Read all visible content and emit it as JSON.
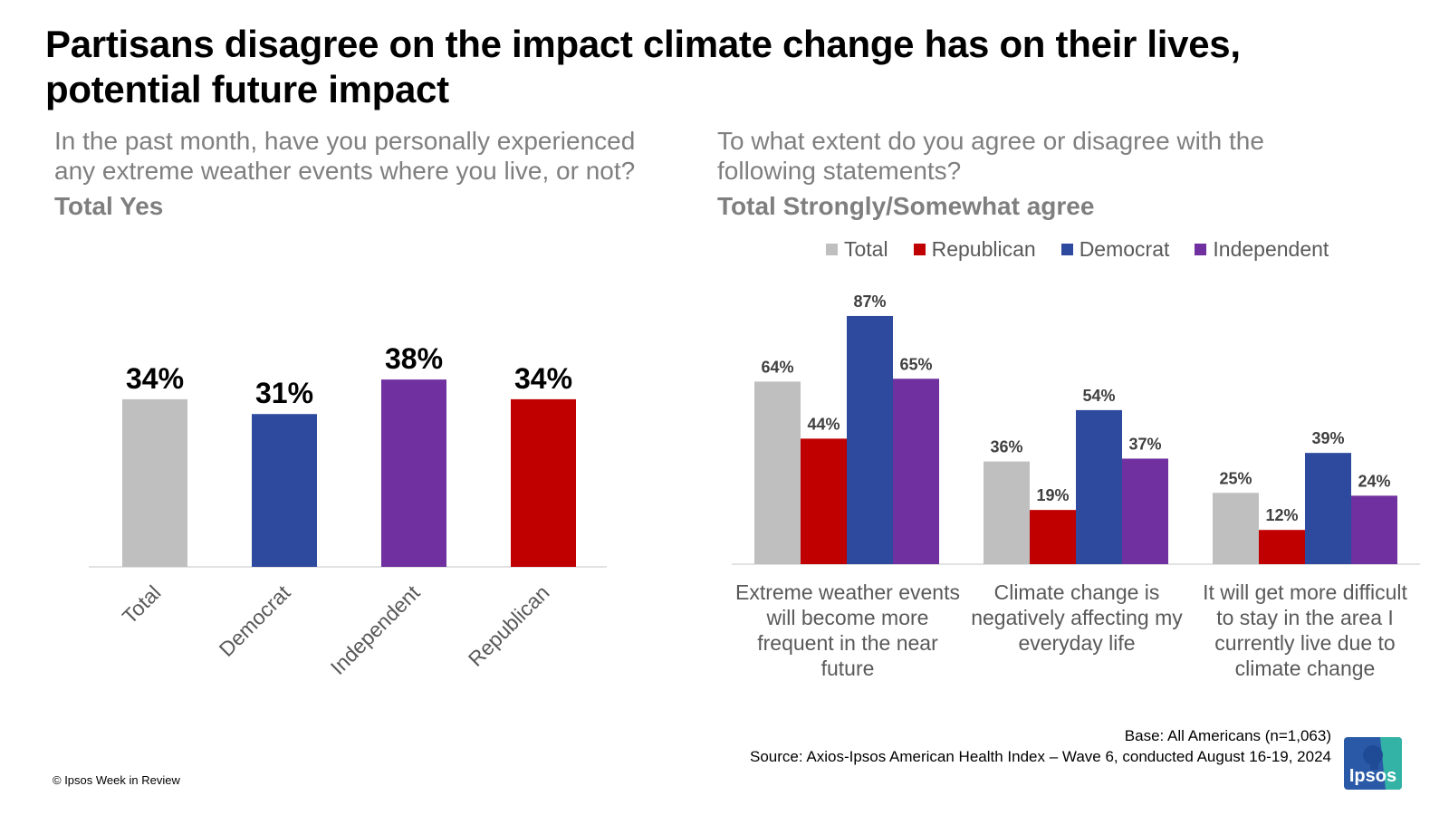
{
  "title": "Partisans disagree on the impact climate change has on their lives, potential future impact",
  "left": {
    "question": "In the past month, have you personally experienced any extreme weather events where you live, or not?",
    "subtitle": "Total Yes"
  },
  "right": {
    "question": "To what extent do you agree or disagree with the following statements?",
    "subtitle": "Total Strongly/Somewhat agree"
  },
  "footer": {
    "base": "Base: All Americans (n=1,063)",
    "source": "Source: Axios-Ipsos American Health Index – Wave 6, conducted August 16-19, 2024",
    "copyright": "© Ipsos Week in Review",
    "logo_text": "Ipsos"
  },
  "chart_data": [
    {
      "type": "bar",
      "categories": [
        "Total",
        "Democrat",
        "Independent",
        "Republican"
      ],
      "values": [
        34,
        31,
        38,
        34
      ],
      "value_labels": [
        "34%",
        "31%",
        "38%",
        "34%"
      ],
      "colors": [
        "#bfbfbf",
        "#2e4a9e",
        "#7030a0",
        "#c00000"
      ],
      "xlabel": "",
      "ylabel": "",
      "ylim": [
        0,
        45
      ]
    },
    {
      "type": "bar",
      "categories": [
        "Extreme weather events will become more frequent in the near future",
        "Climate change is negatively affecting my everyday life",
        "It will get more difficult to stay in the area I currently live due to climate change"
      ],
      "category_lines": [
        [
          "Extreme weather events",
          "will become more",
          "frequent in the near",
          "future"
        ],
        [
          "Climate change is",
          "negatively affecting my",
          "everyday life"
        ],
        [
          "It will get more difficult",
          "to stay in the area I",
          "currently live due to",
          "climate change"
        ]
      ],
      "series": [
        {
          "name": "Total",
          "color": "#bfbfbf",
          "values": [
            64,
            36,
            25
          ],
          "labels": [
            "64%",
            "36%",
            "25%"
          ]
        },
        {
          "name": "Republican",
          "color": "#c00000",
          "values": [
            44,
            19,
            12
          ],
          "labels": [
            "44%",
            "19%",
            "12%"
          ]
        },
        {
          "name": "Democrat",
          "color": "#2e4a9e",
          "values": [
            87,
            54,
            39
          ],
          "labels": [
            "87%",
            "54%",
            "39%"
          ]
        },
        {
          "name": "Independent",
          "color": "#7030a0",
          "values": [
            65,
            37,
            24
          ],
          "labels": [
            "65%",
            "37%",
            "24%"
          ]
        }
      ],
      "legend_position": "top",
      "xlabel": "",
      "ylabel": "",
      "ylim": [
        0,
        100
      ]
    }
  ]
}
